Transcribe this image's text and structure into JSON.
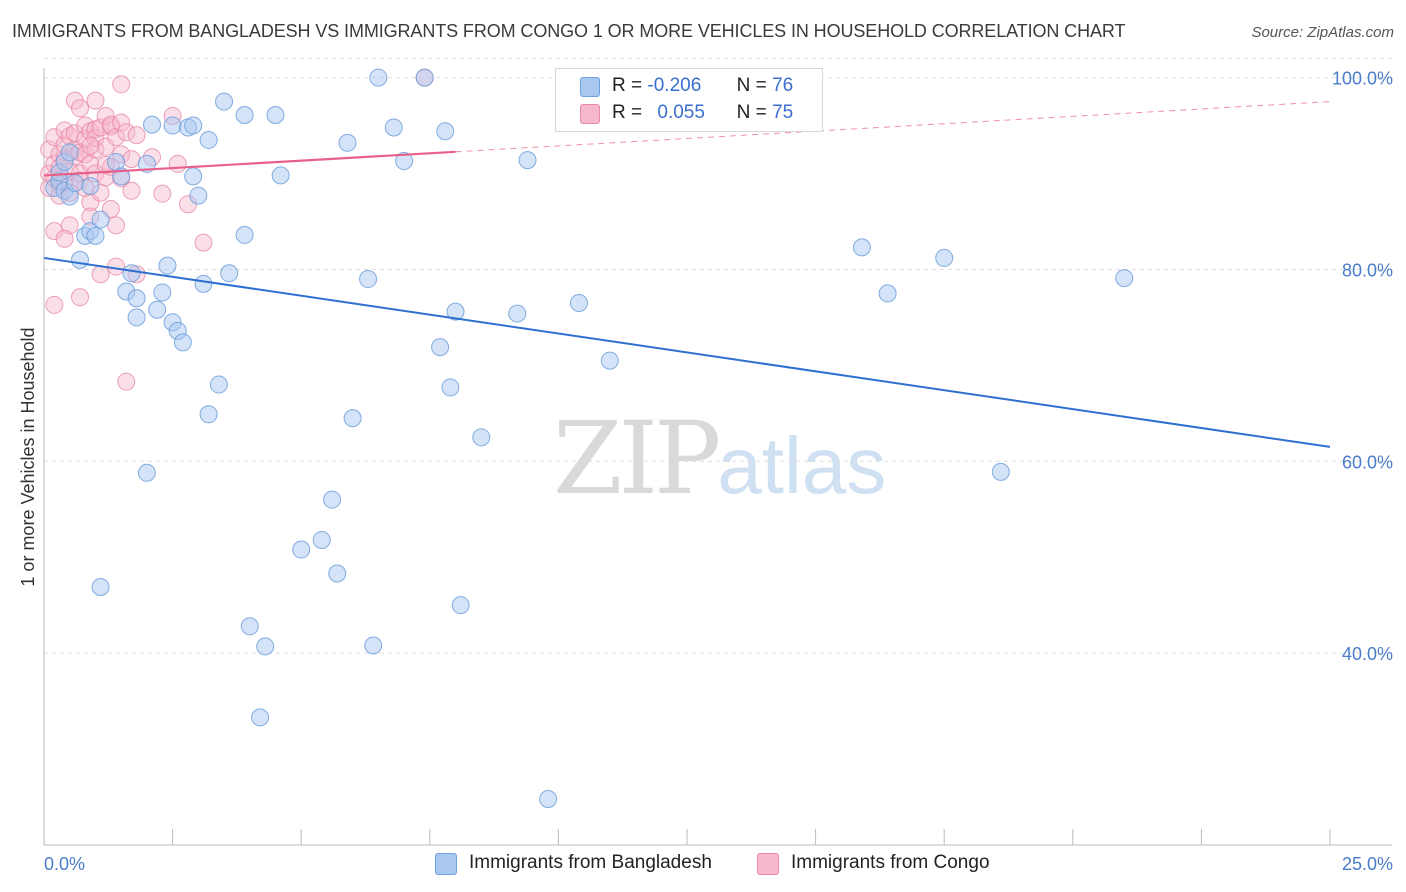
{
  "title": "IMMIGRANTS FROM BANGLADESH VS IMMIGRANTS FROM CONGO 1 OR MORE VEHICLES IN HOUSEHOLD CORRELATION CHART",
  "source": "Source: ZipAtlas.com",
  "watermark": {
    "zip": "ZIP",
    "atlas": "atlas"
  },
  "legend": {
    "rows": [
      {
        "r_label": "R =",
        "r_value": "-0.206",
        "n_label": "N =",
        "n_value": "76",
        "color": "#a9c8f0",
        "border": "#6f9fdc"
      },
      {
        "r_label": "R =",
        "r_value": "0.055",
        "n_label": "N =",
        "n_value": "75",
        "color": "#f7b8cc",
        "border": "#e78aa8"
      }
    ]
  },
  "colors": {
    "blue_fill": "#a9c8f0",
    "blue_stroke": "#6f9fdc",
    "blue_line": "#2f6fd0",
    "pink_fill": "#f7b8cc",
    "pink_stroke": "#e78aa8",
    "pink_line": "#e8608a",
    "grid": "#dddddd",
    "axis_text": "#4a7cc9"
  },
  "chart_data": {
    "type": "scatter",
    "title": "IMMIGRANTS FROM BANGLADESH VS IMMIGRANTS FROM CONGO 1 OR MORE VEHICLES IN HOUSEHOLD CORRELATION CHART",
    "xlabel": "",
    "ylabel": "1 or more Vehicles in Household",
    "xlim": [
      0,
      25
    ],
    "ylim": [
      20,
      101
    ],
    "x_ticks": [
      {
        "value": 0,
        "label": "0.0%"
      },
      {
        "value": 25,
        "label": "25.0%"
      }
    ],
    "y_ticks": [
      {
        "value": 40,
        "label": "40.0%"
      },
      {
        "value": 60,
        "label": "60.0%"
      },
      {
        "value": 80,
        "label": "80.0%"
      },
      {
        "value": 100,
        "label": "100.0%"
      }
    ],
    "grid": true,
    "legend_position": "bottom",
    "series": [
      {
        "name": "Immigrants from Bangladesh",
        "trend": {
          "x": [
            0,
            25
          ],
          "y": [
            81.2,
            61.5
          ],
          "dashed_from": null
        },
        "points": [
          [
            0.2,
            88.5
          ],
          [
            0.3,
            89.2
          ],
          [
            0.3,
            90.1
          ],
          [
            0.4,
            91.2
          ],
          [
            0.4,
            88.2
          ],
          [
            0.5,
            87.6
          ],
          [
            0.5,
            92.2
          ],
          [
            0.6,
            89.0
          ],
          [
            0.7,
            81.0
          ],
          [
            0.8,
            83.5
          ],
          [
            0.9,
            84.0
          ],
          [
            0.9,
            88.7
          ],
          [
            1.0,
            83.5
          ],
          [
            1.1,
            85.2
          ],
          [
            1.1,
            46.9
          ],
          [
            1.4,
            91.2
          ],
          [
            1.5,
            89.7
          ],
          [
            1.6,
            77.7
          ],
          [
            1.7,
            79.6
          ],
          [
            1.8,
            75.0
          ],
          [
            1.8,
            77.0
          ],
          [
            2.0,
            91.0
          ],
          [
            2.0,
            58.8
          ],
          [
            2.1,
            95.1
          ],
          [
            2.2,
            75.8
          ],
          [
            2.3,
            77.6
          ],
          [
            2.4,
            80.4
          ],
          [
            2.5,
            95.0
          ],
          [
            2.5,
            74.5
          ],
          [
            2.6,
            73.6
          ],
          [
            2.7,
            72.4
          ],
          [
            2.8,
            94.8
          ],
          [
            2.9,
            95.0
          ],
          [
            2.9,
            89.7
          ],
          [
            3.0,
            87.7
          ],
          [
            3.1,
            78.5
          ],
          [
            3.2,
            93.5
          ],
          [
            3.2,
            64.9
          ],
          [
            3.4,
            68.0
          ],
          [
            3.5,
            97.5
          ],
          [
            3.6,
            79.6
          ],
          [
            3.9,
            96.1
          ],
          [
            3.9,
            83.6
          ],
          [
            4.0,
            42.8
          ],
          [
            4.2,
            33.3
          ],
          [
            4.3,
            40.7
          ],
          [
            4.5,
            96.1
          ],
          [
            4.6,
            89.8
          ],
          [
            5.0,
            50.8
          ],
          [
            5.4,
            51.8
          ],
          [
            5.6,
            56.0
          ],
          [
            5.7,
            48.3
          ],
          [
            5.9,
            93.2
          ],
          [
            6.0,
            64.5
          ],
          [
            6.3,
            79.0
          ],
          [
            6.4,
            40.8
          ],
          [
            6.5,
            100.0
          ],
          [
            6.8,
            94.8
          ],
          [
            7.0,
            91.3
          ],
          [
            7.4,
            100.0
          ],
          [
            7.7,
            71.9
          ],
          [
            7.8,
            94.4
          ],
          [
            7.9,
            67.7
          ],
          [
            8.0,
            75.6
          ],
          [
            8.1,
            45.0
          ],
          [
            8.5,
            62.5
          ],
          [
            9.2,
            75.4
          ],
          [
            9.4,
            91.4
          ],
          [
            9.8,
            24.8
          ],
          [
            10.4,
            76.5
          ],
          [
            11.0,
            70.5
          ],
          [
            15.9,
            82.3
          ],
          [
            16.4,
            77.5
          ],
          [
            17.5,
            81.2
          ],
          [
            18.6,
            58.9
          ],
          [
            21.0,
            79.1
          ]
        ]
      },
      {
        "name": "Immigrants from Congo",
        "trend": {
          "x": [
            0,
            25
          ],
          "y": [
            89.8,
            97.5
          ],
          "solid_until": 8.0
        },
        "points": [
          [
            0.1,
            88.5
          ],
          [
            0.1,
            90.0
          ],
          [
            0.1,
            92.5
          ],
          [
            0.2,
            84.0
          ],
          [
            0.2,
            76.3
          ],
          [
            0.2,
            89.5
          ],
          [
            0.2,
            91.0
          ],
          [
            0.2,
            93.8
          ],
          [
            0.3,
            88.8
          ],
          [
            0.3,
            92.0
          ],
          [
            0.3,
            90.6
          ],
          [
            0.3,
            87.7
          ],
          [
            0.4,
            93.0
          ],
          [
            0.4,
            91.5
          ],
          [
            0.4,
            89.2
          ],
          [
            0.4,
            94.5
          ],
          [
            0.5,
            93.9
          ],
          [
            0.5,
            90.2
          ],
          [
            0.5,
            84.6
          ],
          [
            0.5,
            88.0
          ],
          [
            0.6,
            92.5
          ],
          [
            0.6,
            91.8
          ],
          [
            0.6,
            97.6
          ],
          [
            0.6,
            94.2
          ],
          [
            0.7,
            96.8
          ],
          [
            0.7,
            92.2
          ],
          [
            0.7,
            89.3
          ],
          [
            0.7,
            90.0
          ],
          [
            0.7,
            77.1
          ],
          [
            0.8,
            95.0
          ],
          [
            0.8,
            92.0
          ],
          [
            0.8,
            93.6
          ],
          [
            0.8,
            88.5
          ],
          [
            0.9,
            94.4
          ],
          [
            0.9,
            87.0
          ],
          [
            0.9,
            85.5
          ],
          [
            0.9,
            91.0
          ],
          [
            1.0,
            97.6
          ],
          [
            1.0,
            94.6
          ],
          [
            1.0,
            92.5
          ],
          [
            1.0,
            90.0
          ],
          [
            1.0,
            93.7
          ],
          [
            1.1,
            88.0
          ],
          [
            1.1,
            79.5
          ],
          [
            1.1,
            94.8
          ],
          [
            1.2,
            96.0
          ],
          [
            1.2,
            92.8
          ],
          [
            1.2,
            89.6
          ],
          [
            1.3,
            94.9
          ],
          [
            1.3,
            95.1
          ],
          [
            1.3,
            90.7
          ],
          [
            1.3,
            86.3
          ],
          [
            1.4,
            80.3
          ],
          [
            1.4,
            93.8
          ],
          [
            1.4,
            84.6
          ],
          [
            1.5,
            99.3
          ],
          [
            1.5,
            92.0
          ],
          [
            1.5,
            89.5
          ],
          [
            1.5,
            95.3
          ],
          [
            1.6,
            94.3
          ],
          [
            1.6,
            68.3
          ],
          [
            1.7,
            91.5
          ],
          [
            1.7,
            88.2
          ],
          [
            1.8,
            79.5
          ],
          [
            1.8,
            94.0
          ],
          [
            2.1,
            91.7
          ],
          [
            2.3,
            87.9
          ],
          [
            2.5,
            96.0
          ],
          [
            2.6,
            91.0
          ],
          [
            2.8,
            86.8
          ],
          [
            3.1,
            82.8
          ],
          [
            7.4,
            100.0
          ],
          [
            0.9,
            92.9
          ],
          [
            0.4,
            83.2
          ],
          [
            1.2,
            90.9
          ]
        ]
      }
    ]
  },
  "bottom_legend": [
    {
      "label": "Immigrants from Bangladesh",
      "color": "#a9c8f0",
      "border": "#6f9fdc"
    },
    {
      "label": "Immigrants from Congo",
      "color": "#f7b8cc",
      "border": "#e78aa8"
    }
  ]
}
